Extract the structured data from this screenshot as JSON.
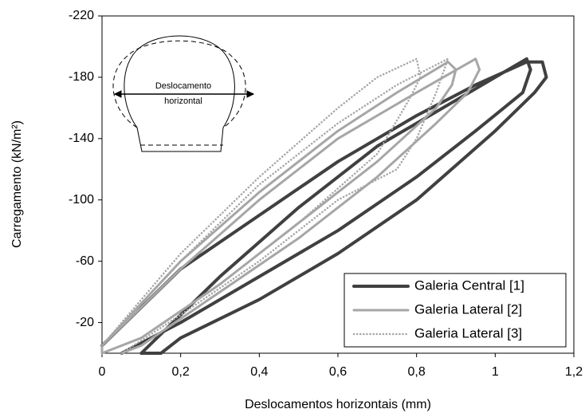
{
  "chart_data": {
    "type": "line",
    "x_label": "Deslocamentos horizontais (mm)",
    "y_label": "Carregamento (kN/m²)",
    "annotation": [
      "Deslocamento",
      "horizontal"
    ],
    "xlim": [
      0,
      1.2
    ],
    "xticks": [
      0,
      {
        "value": 0.2,
        "label": "0,2"
      },
      {
        "value": 0.4,
        "label": "0,4"
      },
      {
        "value": 0.6,
        "label": "0,6"
      },
      {
        "value": 0.8,
        "label": "0,8"
      },
      1,
      {
        "value": 1.2,
        "label": "1,2"
      }
    ],
    "ylim": [
      0,
      -220
    ],
    "yticks": [
      -220,
      -180,
      -140,
      -100,
      -60,
      -20
    ],
    "grid": false,
    "legend": "lower right",
    "series": [
      {
        "name": "Galeria Central [1]",
        "color": "#404040",
        "line_style": "solid",
        "x": [
          0,
          0.2,
          0.4,
          0.6,
          0.8,
          0.95,
          1.08,
          1.12,
          1.13,
          1.1,
          1.0,
          0.8,
          0.6,
          0.4,
          0.2,
          0.15,
          0.1,
          0.3,
          0.5,
          0.7,
          0.9,
          1.08,
          1.09,
          1.07,
          0.95,
          0.8,
          0.6,
          0.4,
          0.2,
          0.05
        ],
        "values": [
          -5,
          -55,
          -90,
          -125,
          -155,
          -175,
          -190,
          -190,
          -180,
          -170,
          -145,
          -100,
          -65,
          -35,
          -10,
          0,
          0,
          -50,
          -95,
          -135,
          -165,
          -192,
          -185,
          -170,
          -145,
          -115,
          -80,
          -50,
          -20,
          0
        ]
      },
      {
        "name": "Galeria Lateral [2]",
        "color": "#a6a6a6",
        "line_style": "solid",
        "x": [
          0,
          0.2,
          0.4,
          0.6,
          0.75,
          0.88,
          0.9,
          0.89,
          0.85,
          0.7,
          0.5,
          0.3,
          0.1,
          0,
          0,
          0.2,
          0.4,
          0.6,
          0.8,
          0.95,
          0.96,
          0.93,
          0.85,
          0.7,
          0.5,
          0.3,
          0.1,
          0.05
        ],
        "values": [
          -5,
          -60,
          -105,
          -145,
          -170,
          -190,
          -185,
          -175,
          -160,
          -125,
          -85,
          -45,
          -10,
          0,
          -5,
          -55,
          -100,
          -140,
          -170,
          -192,
          -185,
          -170,
          -150,
          -115,
          -75,
          -40,
          -5,
          0
        ]
      },
      {
        "name": "Galeria Lateral [3]",
        "color": "#a6a6a6",
        "line_style": "dotted",
        "x": [
          0,
          0.2,
          0.4,
          0.6,
          0.7,
          0.8,
          0.81,
          0.78,
          0.7,
          0.5,
          0.3,
          0.1,
          0,
          0,
          0.2,
          0.4,
          0.6,
          0.75,
          0.88,
          0.85,
          0.8,
          0.75,
          0.6,
          0.4,
          0.2,
          0.05
        ],
        "values": [
          -5,
          -65,
          -115,
          -160,
          -180,
          -192,
          -180,
          -165,
          -130,
          -85,
          -45,
          -10,
          0,
          -5,
          -60,
          -110,
          -150,
          -175,
          -192,
          -170,
          -140,
          -120,
          -100,
          -60,
          -25,
          0
        ]
      }
    ]
  }
}
